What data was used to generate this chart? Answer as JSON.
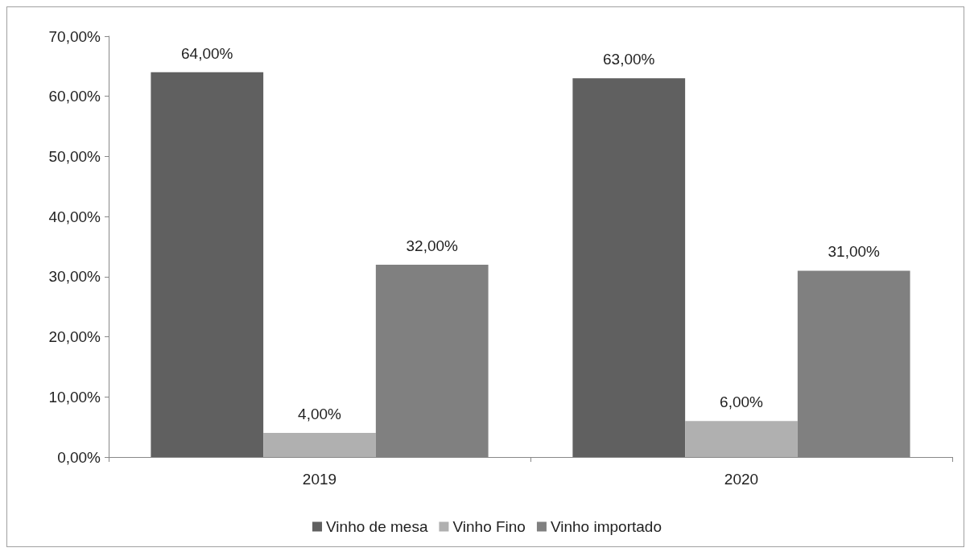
{
  "chart_data": {
    "type": "bar",
    "categories": [
      "2019",
      "2020"
    ],
    "series": [
      {
        "name": "Vinho de mesa",
        "color": "#606060",
        "values": [
          64,
          63
        ],
        "value_labels": [
          "64,00%",
          "63,00%"
        ]
      },
      {
        "name": "Vinho Fino",
        "color": "#b0b0b0",
        "values": [
          4,
          6
        ],
        "value_labels": [
          "4,00%",
          "6,00%"
        ]
      },
      {
        "name": "Vinho importado",
        "color": "#808080",
        "values": [
          32,
          31
        ],
        "value_labels": [
          "32,00%",
          "31,00%"
        ]
      }
    ],
    "ylim": [
      0,
      70
    ],
    "yticks": [
      {
        "value": 0,
        "label": "0,00%"
      },
      {
        "value": 10,
        "label": "10,00%"
      },
      {
        "value": 20,
        "label": "20,00%"
      },
      {
        "value": 30,
        "label": "30,00%"
      },
      {
        "value": 40,
        "label": "40,00%"
      },
      {
        "value": 50,
        "label": "50,00%"
      },
      {
        "value": 60,
        "label": "60,00%"
      },
      {
        "value": 70,
        "label": "70,00%"
      }
    ],
    "grid": false,
    "legend": "bottom"
  }
}
